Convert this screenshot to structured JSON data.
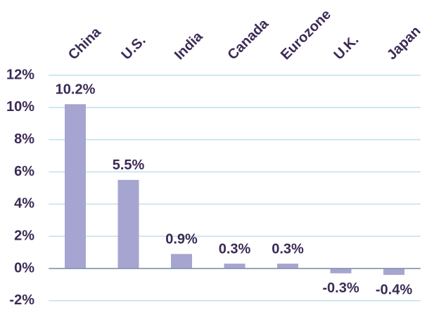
{
  "chart_data": {
    "type": "bar",
    "categories": [
      "China",
      "U.S.",
      "India",
      "Canada",
      "Eurozone",
      "U.K.",
      "Japan"
    ],
    "values": [
      10.2,
      5.5,
      0.9,
      0.3,
      0.3,
      -0.3,
      -0.4
    ],
    "value_labels": [
      "10.2%",
      "5.5%",
      "0.9%",
      "0.3%",
      "0.3%",
      "-0.3%",
      "-0.4%"
    ],
    "color": "#a6a5d1",
    "ylim": [
      -2,
      12
    ],
    "yticks": [
      {
        "value": -2,
        "label": "-2%"
      },
      {
        "value": 0,
        "label": "0%"
      },
      {
        "value": 2,
        "label": "2%"
      },
      {
        "value": 4,
        "label": "4%"
      },
      {
        "value": 6,
        "label": "6%"
      },
      {
        "value": 8,
        "label": "8%"
      },
      {
        "value": 10,
        "label": "10%"
      },
      {
        "value": 12,
        "label": "12%"
      }
    ],
    "grid": true
  }
}
